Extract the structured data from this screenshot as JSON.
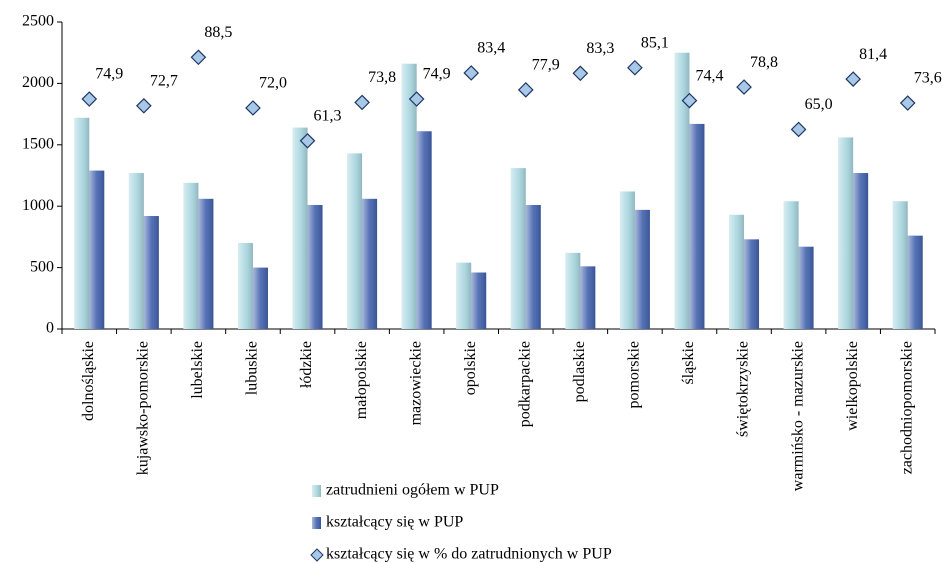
{
  "chart_data": {
    "type": "bar",
    "categories": [
      "dolnośląskie",
      "kujawsko-pomorskie",
      "lubelskie",
      "lubuskie",
      "łódzkie",
      "małopolskie",
      "mazowieckie",
      "opolskie",
      "podkarpackie",
      "podlaskie",
      "pomorskie",
      "śląskie",
      "świętokrzyskie",
      "warmińsko - mazurskie",
      "wielkopolskie",
      "zachodniopomorskie"
    ],
    "series": [
      {
        "name": "zatrudnieni ogółem w PUP",
        "color": "#a9d6df",
        "values": [
          1720,
          1270,
          1190,
          700,
          1640,
          1430,
          2160,
          540,
          1310,
          620,
          1120,
          2250,
          930,
          1040,
          1560,
          1040
        ]
      },
      {
        "name": "kształcący się w PUP",
        "color": "#4262ad",
        "values": [
          1290,
          920,
          1060,
          500,
          1010,
          1060,
          1610,
          460,
          1010,
          510,
          970,
          1670,
          730,
          670,
          1270,
          760
        ]
      },
      {
        "name": "kształcący się w % do zatrudnionych w PUP",
        "type": "scatter",
        "axis": "y2",
        "color": "#a8c8e8",
        "values": [
          74.9,
          72.7,
          88.5,
          72.0,
          61.3,
          73.8,
          74.9,
          83.4,
          77.9,
          83.3,
          85.1,
          74.4,
          78.8,
          65.0,
          81.4,
          73.6
        ],
        "value_labels": [
          "74,9",
          "72,7",
          "88,5",
          "72,0",
          "61,3",
          "73,8",
          "74,9",
          "83,4",
          "77,9",
          "83,3",
          "85,1",
          "74,4",
          "78,8",
          "65,0",
          "81,4",
          "73,6"
        ]
      }
    ],
    "ylim": [
      0,
      2500
    ],
    "yticks": [
      0,
      500,
      1000,
      1500,
      2000,
      2500
    ],
    "y2lim": [
      0,
      100
    ],
    "grid": false,
    "legend": "bottom"
  }
}
